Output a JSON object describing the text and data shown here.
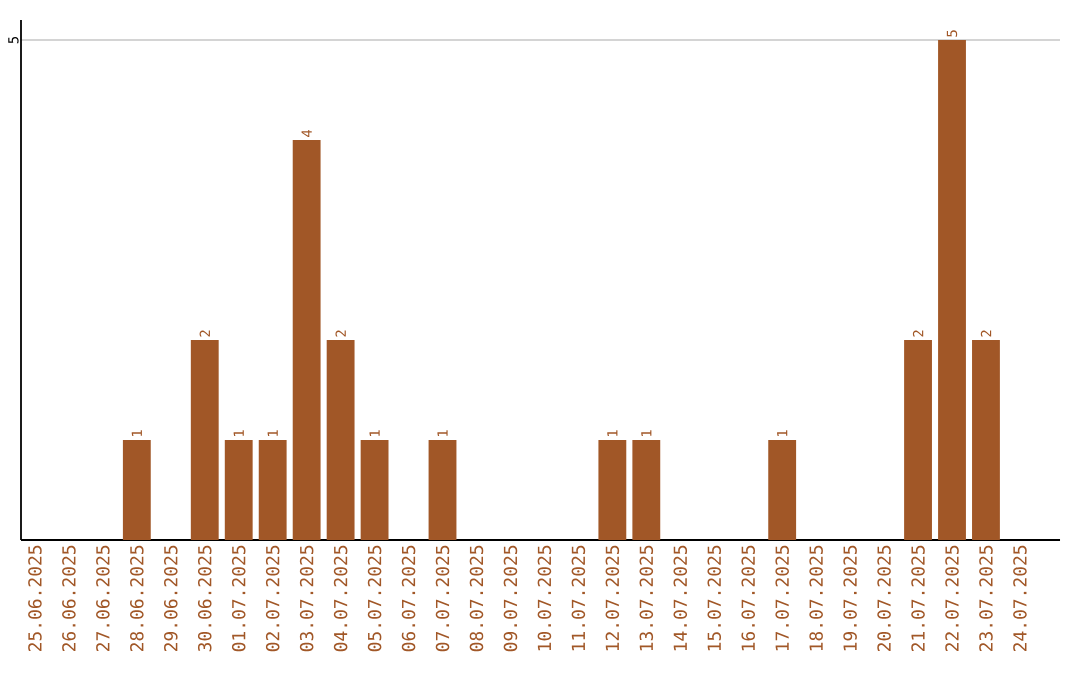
{
  "chart_data": {
    "type": "bar",
    "categories": [
      "25.06.2025",
      "26.06.2025",
      "27.06.2025",
      "28.06.2025",
      "29.06.2025",
      "30.06.2025",
      "01.07.2025",
      "02.07.2025",
      "03.07.2025",
      "04.07.2025",
      "05.07.2025",
      "06.07.2025",
      "07.07.2025",
      "08.07.2025",
      "09.07.2025",
      "10.07.2025",
      "11.07.2025",
      "12.07.2025",
      "13.07.2025",
      "14.07.2025",
      "15.07.2025",
      "16.07.2025",
      "17.07.2025",
      "18.07.2025",
      "19.07.2025",
      "20.07.2025",
      "21.07.2025",
      "22.07.2025",
      "23.07.2025",
      "24.07.2025"
    ],
    "values": [
      0,
      0,
      0,
      1,
      0,
      2,
      1,
      1,
      4,
      2,
      1,
      0,
      1,
      0,
      0,
      0,
      0,
      1,
      1,
      0,
      0,
      0,
      1,
      0,
      0,
      0,
      2,
      5,
      2,
      0
    ],
    "value_labels": [
      null,
      null,
      null,
      "1",
      null,
      "2",
      "1",
      "1",
      "4",
      "2",
      "1",
      null,
      "1",
      null,
      null,
      null,
      null,
      "1",
      "1",
      null,
      null,
      null,
      "1",
      null,
      null,
      null,
      "2",
      "5",
      "2",
      null
    ],
    "color": "#a15727",
    "ylim": [
      0,
      5.2
    ],
    "yticks": [
      5
    ],
    "grid": "y"
  }
}
